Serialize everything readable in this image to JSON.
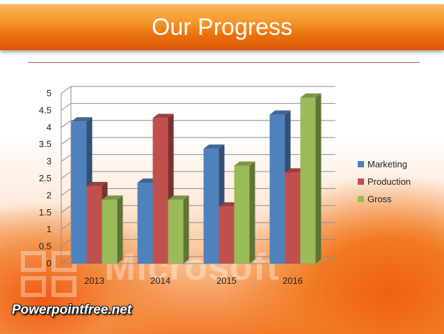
{
  "slide": {
    "title": "Our Progress",
    "watermark_text": "Microsoft",
    "brand_text": "Powerpointfree.net"
  },
  "colors": {
    "title_bar": "#f08a1e",
    "title_rule": "#c65a46",
    "wall_lines": "#8c8c8c"
  },
  "chart_data": {
    "type": "bar",
    "style": "3d-clustered-column",
    "title": "",
    "xlabel": "",
    "ylabel": "",
    "categories": [
      "2013",
      "2014",
      "2015",
      "2016"
    ],
    "ylim": [
      0,
      5
    ],
    "yticks": [
      "0",
      "0.5",
      "1",
      "1.5",
      "2",
      "2.5",
      "3",
      "3.5",
      "4",
      "4.5",
      "5"
    ],
    "grid": true,
    "legend_position": "right",
    "series": [
      {
        "name": "Marketing",
        "color": "#4f81bd",
        "values": [
          4.3,
          2.5,
          3.5,
          4.5
        ]
      },
      {
        "name": "Production",
        "color": "#c0504d",
        "values": [
          2.4,
          4.4,
          1.8,
          2.8
        ]
      },
      {
        "name": "Gross",
        "color": "#9bbb59",
        "values": [
          2.0,
          2.0,
          3.0,
          5.0
        ]
      }
    ]
  }
}
